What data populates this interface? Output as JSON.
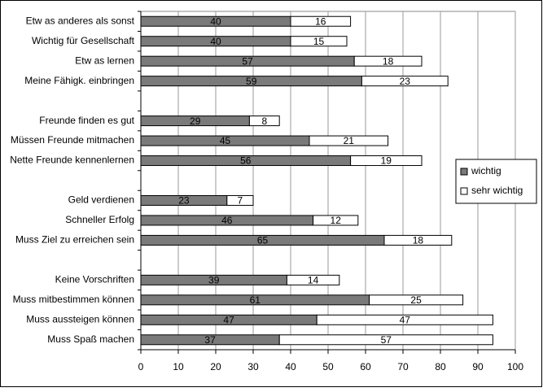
{
  "chart_data": {
    "type": "stacked-bar-horizontal",
    "categories": [
      "Etw as anderes als sonst",
      "Wichtig für Gesellschaft",
      "Etw as lernen",
      "Meine Fähigk. einbringen",
      null,
      "Freunde finden es gut",
      "Müssen Freunde mitmachen",
      "Nette Freunde kennenlernen",
      null,
      "Geld verdienen",
      "Schneller Erfolg",
      "Muss Ziel zu erreichen sein",
      null,
      "Keine Vorschriften",
      "Muss mitbestimmen können",
      "Muss aussteigen können",
      "Muss Spaß machen"
    ],
    "series": [
      {
        "name": "wichtig",
        "color": "#7a7a7a",
        "values": [
          40,
          40,
          57,
          59,
          null,
          29,
          45,
          56,
          null,
          23,
          46,
          65,
          null,
          39,
          61,
          47,
          37
        ]
      },
      {
        "name": "sehr wichtig",
        "color": "#ffffff",
        "values": [
          16,
          15,
          18,
          23,
          null,
          8,
          21,
          19,
          null,
          7,
          12,
          18,
          null,
          14,
          25,
          47,
          57
        ]
      }
    ],
    "xlim": [
      0,
      100
    ],
    "xticks": [
      0,
      10,
      20,
      30,
      40,
      50,
      60,
      70,
      80,
      90,
      100
    ],
    "grid": true,
    "legend": "right"
  }
}
